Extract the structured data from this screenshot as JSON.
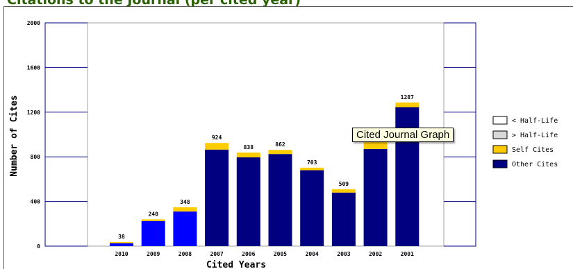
{
  "page": {
    "title": "Citations to the Journal (per cited year)",
    "tooltip": "Cited Journal Graph"
  },
  "colors": {
    "other_cites": "#000080",
    "self_cites": "#ffcc00",
    "before_half_life": "#0000ff",
    "plot_border": "#000080",
    "legend_below_half_life_fill": "#ffffff",
    "legend_above_half_life_fill": "#d8d8d8"
  },
  "chart_data": {
    "type": "bar",
    "stacked": true,
    "title": "Citations to the Journal (per cited year)",
    "xlabel": "Cited Years",
    "ylabel": "Number of Cites",
    "ylim": [
      0,
      2000
    ],
    "yticks": [
      0,
      400,
      800,
      1200,
      1600,
      2000
    ],
    "grid": false,
    "legend_position": "right",
    "categories": [
      "2010",
      "2009",
      "2008",
      "2007",
      "2006",
      "2005",
      "2004",
      "2003",
      "2002",
      "2001"
    ],
    "totals": [
      38,
      240,
      348,
      924,
      838,
      862,
      703,
      509,
      950,
      1287
    ],
    "total_labels_visible": [
      true,
      true,
      true,
      true,
      true,
      true,
      true,
      true,
      false,
      true
    ],
    "series": [
      {
        "name": "Other Cites",
        "values": [
          25,
          225,
          310,
          865,
          795,
          825,
          680,
          480,
          870,
          1245
        ]
      },
      {
        "name": "Self Cites",
        "values": [
          13,
          15,
          38,
          59,
          43,
          37,
          23,
          29,
          80,
          42
        ]
      }
    ],
    "before_half_life_categories": [
      "2010",
      "2009",
      "2008"
    ],
    "legend": [
      {
        "label": "< Half-Life",
        "swatch": "half-life-below"
      },
      {
        "label": "> Half-Life",
        "swatch": "half-life-above"
      },
      {
        "label": "Self Cites",
        "swatch": "self-cites"
      },
      {
        "label": "Other Cites",
        "swatch": "other-cites"
      }
    ]
  }
}
